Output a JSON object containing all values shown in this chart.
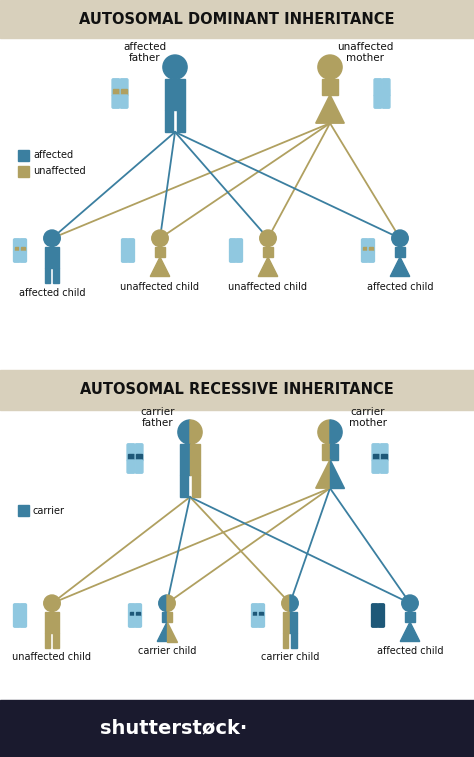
{
  "fig_width": 4.74,
  "fig_height": 7.57,
  "dpi": 100,
  "bg_color": "#f0ece0",
  "white_bg": "#ffffff",
  "title1": "AUTOSOMAL DOMINANT INHERITANCE",
  "title2": "AUTOSOMAL RECESSIVE INHERITANCE",
  "title_bg": "#d8d0bc",
  "title_fontsize": 10.5,
  "blue": "#3b7fa0",
  "tan": "#b0a060",
  "light_blue": "#90c8e0",
  "dark_blue": "#1e5878",
  "text_color": "#111111",
  "line_blue": "#3b7fa0",
  "line_tan": "#b0a060",
  "ss_bg": "#1a1a2e",
  "label_fontsize": 7.0,
  "parent_label_fontsize": 7.5
}
